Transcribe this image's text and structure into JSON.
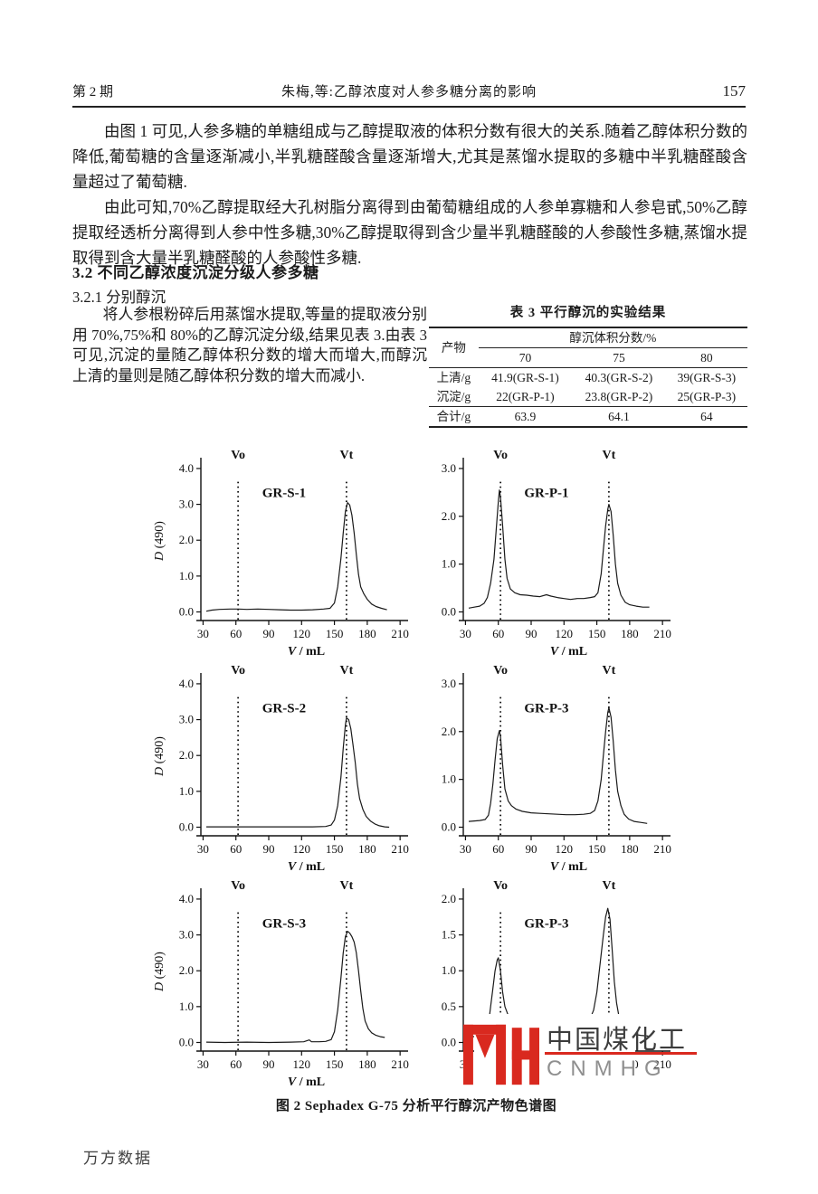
{
  "header": {
    "issue": "第 2 期",
    "running_title": "朱梅,等:乙醇浓度对人参多糖分离的影响",
    "page_number": "157"
  },
  "paragraphs": {
    "p1": "由图 1 可见,人参多糖的单糖组成与乙醇提取液的体积分数有很大的关系.随着乙醇体积分数的降低,葡萄糖的含量逐渐减小,半乳糖醛酸含量逐渐增大,尤其是蒸馏水提取的多糖中半乳糖醛酸含量超过了葡萄糖.",
    "p2": "由此可知,70%乙醇提取经大孔树脂分离得到由葡萄糖组成的人参单寡糖和人参皂甙,50%乙醇提取经透析分离得到人参中性多糖,30%乙醇提取得到含少量半乳糖醛酸的人参酸性多糖,蒸馏水提取得到含大量半乳糖醛酸的人参酸性多糖."
  },
  "sections": {
    "s32": "3.2  不同乙醇浓度沉淀分级人参多糖",
    "s321": "3.2.1  分别醇沉"
  },
  "left_column_paragraph": "将人参根粉碎后用蒸馏水提取,等量的提取液分别用 70%,75%和 80%的乙醇沉淀分级,结果见表 3.由表 3 可见,沉淀的量随乙醇体积分数的增大而增大,而醇沉上清的量则是随乙醇体积分数的增大而减小.",
  "table3": {
    "title": "表 3  平行醇沉的实验结果",
    "row_header": "产物",
    "group_header": "醇沉体积分数/%",
    "sub_headers": [
      "70",
      "75",
      "80"
    ],
    "rows": [
      {
        "label": "上清/g",
        "values": [
          "41.9(GR-S-1)",
          "40.3(GR-S-2)",
          "39(GR-S-3)"
        ]
      },
      {
        "label": "沉淀/g",
        "values": [
          "22(GR-P-1)",
          "23.8(GR-P-2)",
          "25(GR-P-3)"
        ]
      },
      {
        "label": "合计/g",
        "values": [
          "63.9",
          "64.1",
          "64"
        ]
      }
    ]
  },
  "figure_caption": "图 2  Sephadex G-75 分析平行醇沉产物色谱图",
  "watermark": {
    "cn": "中国煤化工",
    "en": "CNMHG",
    "red": "#d9291f",
    "gray": "#8f8f8f"
  },
  "footer": "万方数据",
  "chart_data": [
    {
      "type": "line",
      "title": "GR-S-1",
      "xlabel": "V / mL",
      "ylabel": "D (490)",
      "xlim": [
        30,
        210
      ],
      "ylim": [
        0,
        4
      ],
      "xticks": [
        30,
        60,
        90,
        120,
        150,
        180,
        210
      ],
      "yticks": [
        0,
        1,
        2,
        3,
        4
      ],
      "vo_label": "Vo",
      "vt_label": "Vt",
      "vo_x": 62,
      "vt_x": 161,
      "points": [
        [
          33,
          0.02
        ],
        [
          38,
          0.05
        ],
        [
          45,
          0.07
        ],
        [
          55,
          0.08
        ],
        [
          62,
          0.08
        ],
        [
          70,
          0.07
        ],
        [
          80,
          0.08
        ],
        [
          90,
          0.07
        ],
        [
          100,
          0.06
        ],
        [
          110,
          0.05
        ],
        [
          120,
          0.05
        ],
        [
          130,
          0.06
        ],
        [
          140,
          0.08
        ],
        [
          146,
          0.1
        ],
        [
          150,
          0.25
        ],
        [
          153,
          0.7
        ],
        [
          156,
          1.5
        ],
        [
          158,
          2.2
        ],
        [
          160,
          2.8
        ],
        [
          162,
          3.05
        ],
        [
          164,
          2.98
        ],
        [
          166,
          2.7
        ],
        [
          168,
          2.2
        ],
        [
          170,
          1.6
        ],
        [
          172,
          1.05
        ],
        [
          174,
          0.7
        ],
        [
          177,
          0.5
        ],
        [
          180,
          0.35
        ],
        [
          184,
          0.22
        ],
        [
          188,
          0.15
        ],
        [
          193,
          0.1
        ],
        [
          198,
          0.06
        ]
      ]
    },
    {
      "type": "line",
      "title": "GR-P-1",
      "xlabel": "V / mL",
      "ylabel": "",
      "xlim": [
        30,
        210
      ],
      "ylim": [
        0,
        3
      ],
      "xticks": [
        30,
        60,
        90,
        120,
        150,
        180,
        210
      ],
      "yticks": [
        0,
        1,
        2,
        3
      ],
      "vo_label": "Vo",
      "vt_label": "Vt",
      "vo_x": 62,
      "vt_x": 161,
      "points": [
        [
          33,
          0.08
        ],
        [
          38,
          0.1
        ],
        [
          43,
          0.12
        ],
        [
          47,
          0.18
        ],
        [
          50,
          0.3
        ],
        [
          53,
          0.6
        ],
        [
          56,
          1.1
        ],
        [
          58,
          1.7
        ],
        [
          60,
          2.3
        ],
        [
          61,
          2.55
        ],
        [
          62,
          2.4
        ],
        [
          64,
          1.8
        ],
        [
          66,
          1.1
        ],
        [
          68,
          0.7
        ],
        [
          71,
          0.48
        ],
        [
          75,
          0.4
        ],
        [
          80,
          0.36
        ],
        [
          86,
          0.35
        ],
        [
          92,
          0.33
        ],
        [
          98,
          0.32
        ],
        [
          104,
          0.36
        ],
        [
          108,
          0.33
        ],
        [
          114,
          0.3
        ],
        [
          120,
          0.28
        ],
        [
          126,
          0.26
        ],
        [
          132,
          0.28
        ],
        [
          138,
          0.28
        ],
        [
          144,
          0.3
        ],
        [
          148,
          0.32
        ],
        [
          151,
          0.4
        ],
        [
          154,
          0.8
        ],
        [
          156,
          1.3
        ],
        [
          158,
          1.8
        ],
        [
          160,
          2.15
        ],
        [
          161,
          2.25
        ],
        [
          163,
          2.1
        ],
        [
          165,
          1.6
        ],
        [
          167,
          1.0
        ],
        [
          169,
          0.6
        ],
        [
          172,
          0.35
        ],
        [
          176,
          0.2
        ],
        [
          180,
          0.15
        ],
        [
          186,
          0.12
        ],
        [
          192,
          0.1
        ],
        [
          198,
          0.1
        ]
      ]
    },
    {
      "type": "line",
      "title": "GR-S-2",
      "xlabel": "V / mL",
      "ylabel": "D (490)",
      "xlim": [
        30,
        210
      ],
      "ylim": [
        0,
        4
      ],
      "xticks": [
        30,
        60,
        90,
        120,
        150,
        180,
        210
      ],
      "yticks": [
        0,
        1,
        2,
        3,
        4
      ],
      "vo_label": "Vo",
      "vt_label": "Vt",
      "vo_x": 62,
      "vt_x": 161,
      "points": [
        [
          33,
          0.01
        ],
        [
          50,
          0.01
        ],
        [
          70,
          0.01
        ],
        [
          90,
          0.01
        ],
        [
          110,
          0.01
        ],
        [
          130,
          0.01
        ],
        [
          142,
          0.02
        ],
        [
          147,
          0.06
        ],
        [
          150,
          0.2
        ],
        [
          153,
          0.6
        ],
        [
          156,
          1.4
        ],
        [
          158,
          2.2
        ],
        [
          160,
          2.85
        ],
        [
          161,
          3.05
        ],
        [
          163,
          3.0
        ],
        [
          165,
          2.75
        ],
        [
          167,
          2.3
        ],
        [
          169,
          1.8
        ],
        [
          171,
          1.2
        ],
        [
          173,
          0.8
        ],
        [
          176,
          0.5
        ],
        [
          179,
          0.3
        ],
        [
          183,
          0.17
        ],
        [
          187,
          0.09
        ],
        [
          191,
          0.04
        ],
        [
          196,
          0.01
        ],
        [
          200,
          0.0
        ]
      ]
    },
    {
      "type": "line",
      "title": "GR-P-3",
      "xlabel": "V / mL",
      "ylabel": "",
      "xlim": [
        30,
        210
      ],
      "ylim": [
        0,
        3
      ],
      "xticks": [
        30,
        60,
        90,
        120,
        150,
        180,
        210
      ],
      "yticks": [
        0,
        1,
        2,
        3
      ],
      "vo_label": "Vo",
      "vt_label": "Vt",
      "vo_x": 62,
      "vt_x": 161,
      "points": [
        [
          33,
          0.12
        ],
        [
          38,
          0.13
        ],
        [
          43,
          0.14
        ],
        [
          48,
          0.16
        ],
        [
          51,
          0.25
        ],
        [
          53,
          0.5
        ],
        [
          55,
          0.9
        ],
        [
          57,
          1.4
        ],
        [
          59,
          1.85
        ],
        [
          61,
          2.02
        ],
        [
          62,
          1.9
        ],
        [
          64,
          1.3
        ],
        [
          66,
          0.8
        ],
        [
          69,
          0.55
        ],
        [
          72,
          0.45
        ],
        [
          76,
          0.38
        ],
        [
          82,
          0.33
        ],
        [
          90,
          0.3
        ],
        [
          98,
          0.29
        ],
        [
          106,
          0.28
        ],
        [
          114,
          0.27
        ],
        [
          122,
          0.26
        ],
        [
          130,
          0.26
        ],
        [
          138,
          0.27
        ],
        [
          144,
          0.29
        ],
        [
          148,
          0.35
        ],
        [
          151,
          0.55
        ],
        [
          154,
          1.0
        ],
        [
          156,
          1.5
        ],
        [
          158,
          2.0
        ],
        [
          160,
          2.4
        ],
        [
          161,
          2.5
        ],
        [
          163,
          2.3
        ],
        [
          165,
          1.8
        ],
        [
          167,
          1.2
        ],
        [
          169,
          0.75
        ],
        [
          172,
          0.45
        ],
        [
          175,
          0.27
        ],
        [
          179,
          0.17
        ],
        [
          184,
          0.12
        ],
        [
          190,
          0.1
        ],
        [
          196,
          0.08
        ]
      ]
    },
    {
      "type": "line",
      "title": "GR-S-3",
      "xlabel": "V / mL",
      "ylabel": "D (490)",
      "xlim": [
        30,
        210
      ],
      "ylim": [
        0,
        4
      ],
      "xticks": [
        30,
        60,
        90,
        120,
        150,
        180,
        210
      ],
      "yticks": [
        0,
        1,
        2,
        3,
        4
      ],
      "vo_label": "Vo",
      "vt_label": "Vt",
      "vo_x": 62,
      "vt_x": 161,
      "points": [
        [
          33,
          0.01
        ],
        [
          50,
          0.0
        ],
        [
          70,
          0.01
        ],
        [
          90,
          0.0
        ],
        [
          110,
          0.01
        ],
        [
          122,
          0.02
        ],
        [
          127,
          0.07
        ],
        [
          129,
          0.02
        ],
        [
          136,
          0.02
        ],
        [
          142,
          0.03
        ],
        [
          147,
          0.08
        ],
        [
          150,
          0.3
        ],
        [
          153,
          0.9
        ],
        [
          156,
          1.8
        ],
        [
          158,
          2.5
        ],
        [
          160,
          2.95
        ],
        [
          162,
          3.1
        ],
        [
          164,
          3.05
        ],
        [
          166,
          2.95
        ],
        [
          168,
          2.8
        ],
        [
          170,
          2.5
        ],
        [
          172,
          2.0
        ],
        [
          174,
          1.45
        ],
        [
          176,
          0.95
        ],
        [
          178,
          0.6
        ],
        [
          181,
          0.38
        ],
        [
          184,
          0.27
        ],
        [
          188,
          0.2
        ],
        [
          192,
          0.16
        ],
        [
          196,
          0.14
        ]
      ]
    },
    {
      "type": "line",
      "title": "GR-P-3",
      "xlabel": "V / mL",
      "ylabel": "",
      "xlim": [
        30,
        210
      ],
      "ylim": [
        0,
        2
      ],
      "xticks": [
        30,
        60,
        90,
        120,
        150,
        180,
        210
      ],
      "yticks": [
        0,
        0.5,
        1,
        1.5,
        2
      ],
      "vo_label": "Vo",
      "vt_label": "Vt",
      "vo_x": 62,
      "vt_x": 161,
      "points": [
        [
          33,
          0.05
        ],
        [
          36,
          0.09
        ],
        [
          40,
          0.07
        ],
        [
          44,
          0.08
        ],
        [
          48,
          0.12
        ],
        [
          51,
          0.25
        ],
        [
          53,
          0.5
        ],
        [
          55,
          0.75
        ],
        [
          57,
          1.0
        ],
        [
          59,
          1.15
        ],
        [
          60,
          1.18
        ],
        [
          62,
          1.0
        ],
        [
          64,
          0.7
        ],
        [
          66,
          0.5
        ],
        [
          69,
          0.38
        ],
        [
          72,
          0.3
        ],
        [
          76,
          0.27
        ],
        [
          82,
          0.25
        ],
        [
          90,
          0.24
        ],
        [
          100,
          0.24
        ],
        [
          110,
          0.24
        ],
        [
          120,
          0.24
        ],
        [
          130,
          0.25
        ],
        [
          138,
          0.26
        ],
        [
          143,
          0.3
        ],
        [
          147,
          0.45
        ],
        [
          150,
          0.7
        ],
        [
          153,
          1.1
        ],
        [
          156,
          1.5
        ],
        [
          158,
          1.75
        ],
        [
          160,
          1.87
        ],
        [
          162,
          1.72
        ],
        [
          164,
          1.3
        ],
        [
          166,
          0.85
        ],
        [
          168,
          0.55
        ],
        [
          170,
          0.38
        ],
        [
          173,
          0.25
        ],
        [
          177,
          0.16
        ],
        [
          182,
          0.12
        ],
        [
          190,
          0.1
        ],
        [
          197,
          0.09
        ]
      ]
    }
  ]
}
